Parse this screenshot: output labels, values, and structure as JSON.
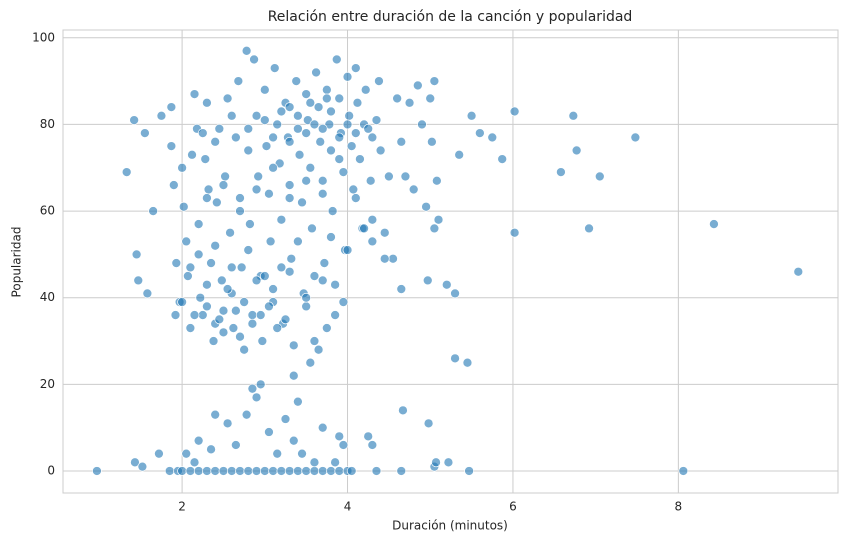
{
  "chart_data": {
    "type": "scatter",
    "title": "Relación entre duración de la canción y popularidad",
    "xlabel": "Duración (minutos)",
    "ylabel": "Popularidad",
    "color": "#1f77b4",
    "grid": true,
    "xlim": [
      0.56,
      9.93
    ],
    "ylim": [
      -5.08,
      101.8
    ],
    "xticks": [
      2,
      4,
      6,
      8
    ],
    "yticks": [
      0,
      20,
      40,
      60,
      80,
      100
    ],
    "x": [
      0.97,
      1.33,
      1.42,
      1.45,
      1.47,
      1.58,
      1.65,
      1.55,
      1.43,
      1.52,
      1.72,
      1.75,
      1.87,
      1.87,
      1.9,
      1.93,
      1.85,
      1.95,
      1.92,
      1.97,
      2.0,
      2.02,
      2.05,
      2.07,
      2.1,
      2.12,
      2.15,
      2.18,
      2.2,
      2.22,
      2.25,
      2.28,
      2.3,
      2.32,
      2.35,
      2.38,
      2.4,
      2.42,
      2.45,
      2.48,
      2.5,
      2.52,
      2.55,
      2.58,
      2.6,
      2.62,
      2.65,
      2.68,
      2.7,
      2.72,
      2.75,
      2.78,
      2.8,
      2.82,
      2.85,
      2.87,
      2.9,
      2.92,
      2.95,
      2.97,
      3.0,
      3.02,
      3.05,
      3.07,
      3.1,
      3.12,
      3.15,
      3.18,
      3.2,
      3.22,
      3.25,
      3.28,
      3.3,
      3.32,
      3.35,
      3.38,
      3.4,
      3.42,
      3.45,
      3.47,
      3.5,
      3.52,
      3.55,
      3.57,
      3.6,
      3.62,
      3.65,
      3.67,
      3.7,
      3.72,
      3.75,
      3.78,
      3.8,
      3.82,
      3.85,
      3.87,
      3.9,
      3.92,
      3.95,
      3.97,
      4.0,
      4.02,
      4.05,
      4.07,
      4.1,
      4.12,
      4.15,
      4.18,
      4.2,
      4.22,
      4.25,
      4.28,
      4.3,
      4.35,
      4.38,
      4.4,
      4.45,
      4.5,
      4.55,
      4.6,
      4.65,
      4.7,
      4.75,
      4.8,
      4.85,
      4.9,
      4.95,
      5.0,
      5.02,
      5.08,
      5.05,
      5.35,
      5.5,
      5.6,
      5.75,
      5.87,
      6.02,
      6.02,
      6.58,
      6.73,
      6.77,
      6.92,
      7.05,
      7.48,
      8.06,
      8.43,
      9.45,
      5.3,
      5.45,
      5.22,
      5.47,
      5.1,
      5.2,
      5.3,
      4.98,
      4.67,
      5.05,
      5.07,
      4.65,
      4.97,
      5.05,
      2.0,
      2.1,
      2.2,
      2.3,
      2.4,
      2.5,
      2.6,
      2.7,
      2.8,
      2.9,
      3.0,
      3.1,
      3.2,
      3.3,
      3.4,
      3.5,
      3.6,
      3.7,
      3.8,
      3.9,
      4.0,
      4.05,
      4.35,
      4.65,
      2.15,
      2.35,
      2.55,
      2.65,
      2.78,
      2.85,
      2.95,
      2.9,
      3.05,
      3.25,
      3.35,
      3.4,
      3.45,
      3.55,
      3.7,
      3.9,
      3.95,
      4.25,
      4.3,
      2.4,
      2.2,
      3.15,
      3.6,
      2.05,
      3.85,
      2.15,
      2.3,
      2.45,
      2.55,
      2.65,
      2.75,
      2.85,
      2.95,
      3.05,
      3.15,
      3.25,
      3.35,
      3.5,
      3.65,
      3.75,
      3.85,
      3.95,
      2.2,
      2.4,
      2.6,
      2.8,
      3.0,
      3.2,
      3.4,
      3.6,
      3.8,
      4.0,
      4.2,
      4.3,
      4.45,
      2.25,
      2.4,
      2.6,
      2.8,
      3.0,
      3.1,
      3.2,
      3.3,
      3.4,
      3.5,
      3.6,
      3.7,
      3.8,
      3.9,
      4.0,
      4.1,
      4.3,
      3.3,
      3.55,
      3.75,
      2.3,
      2.5,
      2.7,
      2.9,
      3.1,
      3.3,
      3.5,
      3.7,
      3.9,
      4.1,
      2.0,
      2.1,
      2.3,
      2.5,
      2.7,
      2.9,
      3.1,
      3.3,
      3.5,
      3.7
    ],
    "values": [
      0,
      69,
      81,
      50,
      44,
      41,
      60,
      78,
      2,
      1,
      4,
      82,
      84,
      75,
      66,
      48,
      0,
      0,
      36,
      39,
      70,
      61,
      53,
      45,
      33,
      73,
      87,
      79,
      57,
      40,
      36,
      72,
      85,
      65,
      48,
      30,
      34,
      62,
      79,
      44,
      37,
      68,
      86,
      55,
      41,
      33,
      77,
      90,
      63,
      47,
      28,
      97,
      74,
      57,
      36,
      95,
      82,
      68,
      45,
      30,
      88,
      75,
      64,
      53,
      39,
      93,
      80,
      71,
      58,
      34,
      85,
      77,
      66,
      49,
      22,
      90,
      79,
      73,
      62,
      41,
      87,
      81,
      70,
      56,
      30,
      92,
      84,
      76,
      67,
      48,
      88,
      80,
      74,
      60,
      43,
      95,
      86,
      78,
      69,
      51,
      91,
      82,
      75,
      65,
      93,
      85,
      72,
      56,
      80,
      88,
      79,
      67,
      58,
      81,
      90,
      74,
      55,
      68,
      49,
      86,
      76,
      68,
      85,
      65,
      89,
      80,
      61,
      86,
      76,
      67,
      90,
      73,
      82,
      78,
      77,
      72,
      83,
      55,
      69,
      82,
      74,
      56,
      68,
      77,
      0,
      57,
      46,
      26,
      25,
      2,
      0,
      58,
      43,
      41,
      11,
      14,
      1,
      2,
      42,
      44,
      56,
      0,
      0,
      0,
      0,
      0,
      0,
      0,
      0,
      0,
      0,
      0,
      0,
      0,
      0,
      0,
      0,
      0,
      0,
      0,
      0,
      0,
      0,
      0,
      0,
      2,
      5,
      11,
      6,
      13,
      19,
      20,
      17,
      9,
      12,
      7,
      16,
      4,
      25,
      10,
      8,
      6,
      8,
      6,
      13,
      7,
      4,
      2,
      4,
      2,
      36,
      38,
      35,
      42,
      37,
      39,
      34,
      36,
      38,
      33,
      35,
      29,
      38,
      28,
      33,
      36,
      39,
      50,
      52,
      47,
      51,
      45,
      47,
      53,
      45,
      54,
      51,
      56,
      53,
      49,
      78,
      76,
      82,
      79,
      81,
      77,
      83,
      76,
      82,
      78,
      80,
      79,
      83,
      77,
      80,
      78,
      77,
      84,
      85,
      86,
      63,
      66,
      60,
      65,
      70,
      63,
      67,
      64,
      72,
      63,
      39,
      47,
      43,
      32,
      31,
      44,
      42,
      46,
      40,
      44
    ]
  }
}
